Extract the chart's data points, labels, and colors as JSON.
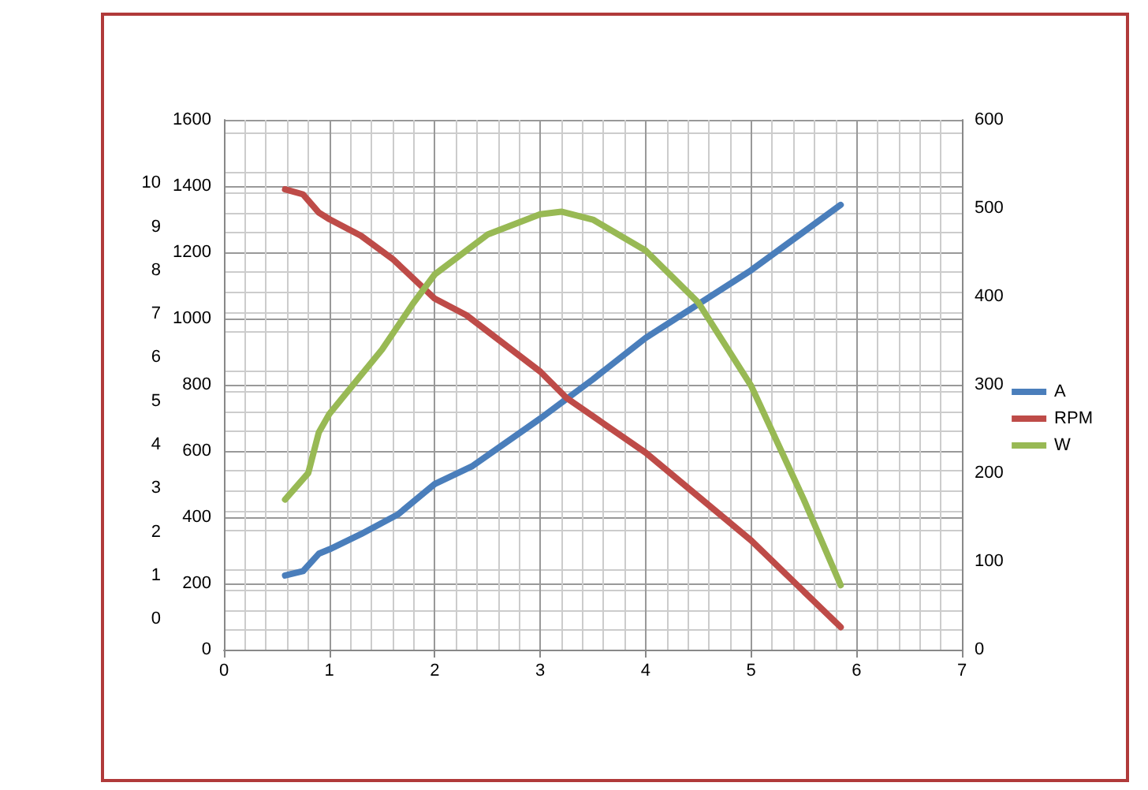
{
  "chart_data": {
    "type": "line",
    "xlim": [
      0,
      7
    ],
    "xticks": [
      0,
      1,
      2,
      3,
      4,
      5,
      6,
      7
    ],
    "ylim": [
      0,
      1600
    ],
    "yticks": [
      0,
      200,
      400,
      600,
      800,
      1000,
      1200,
      1400,
      1600
    ],
    "y2lim": [
      0,
      600
    ],
    "y2ticks": [
      0,
      100,
      200,
      300,
      400,
      500,
      600
    ],
    "y3lim": [
      -0.7,
      11.45
    ],
    "y3ticks": [
      0,
      1,
      2,
      3,
      4,
      5,
      6,
      7,
      8,
      9,
      10
    ],
    "grid": true,
    "legend": "right",
    "marker": "none",
    "line_style": "solid",
    "series": [
      {
        "name": "A",
        "color": "#4a7ebb",
        "axis": "y3",
        "x": [
          0.58,
          0.75,
          0.9,
          1.0,
          1.3,
          1.65,
          1.9,
          2.0,
          2.35,
          3.0,
          3.5,
          4.0,
          5.0,
          5.85
        ],
        "values": [
          1.0,
          1.1,
          1.5,
          1.6,
          1.95,
          2.4,
          2.9,
          3.1,
          3.5,
          4.6,
          5.5,
          6.45,
          8.0,
          9.5
        ]
      },
      {
        "name": "RPM",
        "color": "#be4b48",
        "axis": "y",
        "x": [
          0.58,
          0.75,
          0.9,
          1.0,
          1.3,
          1.6,
          1.8,
          2.0,
          2.3,
          3.0,
          3.25,
          4.0,
          5.0,
          5.85
        ],
        "values": [
          1390,
          1375,
          1320,
          1300,
          1250,
          1180,
          1120,
          1060,
          1010,
          840,
          760,
          595,
          330,
          68
        ]
      },
      {
        "name": "W",
        "color": "#98b954",
        "axis": "y2",
        "x": [
          0.58,
          0.8,
          0.9,
          1.0,
          1.5,
          1.8,
          2.0,
          2.5,
          3.0,
          3.2,
          3.5,
          4.0,
          4.5,
          5.0,
          5.5,
          5.85
        ],
        "values": [
          170,
          200,
          246,
          267,
          340,
          393,
          425,
          470,
          493,
          496,
          487,
          452,
          393,
          299,
          170,
          73
        ]
      }
    ]
  }
}
